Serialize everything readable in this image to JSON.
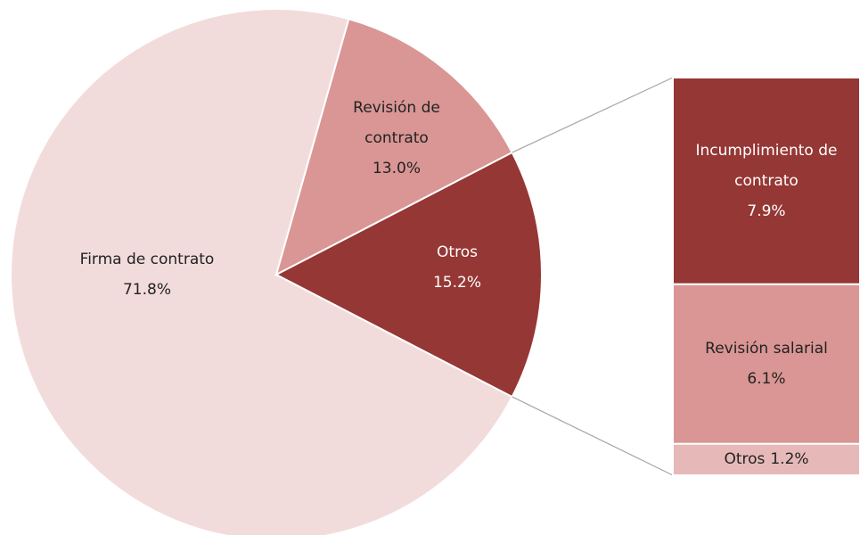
{
  "chart_data": {
    "type": "pie-of-bar",
    "categories": [
      "Firma de contrato",
      "Revisión de contrato",
      "Otros"
    ],
    "values": [
      71.8,
      13.0,
      15.2
    ],
    "value_labels": [
      "71.8%",
      "13.0%",
      "15.2%"
    ],
    "colors": [
      "#f2dcdb",
      "#d99694",
      "#953735"
    ],
    "breakdown": {
      "categories": [
        "Incumplimiento de contrato",
        "Revisión salarial",
        "Otros"
      ],
      "values": [
        7.9,
        6.1,
        1.2
      ],
      "value_labels": [
        "7.9%",
        "6.1%",
        "1.2%"
      ],
      "colors": [
        "#953735",
        "#d99694",
        "#e6b9b8"
      ]
    }
  }
}
